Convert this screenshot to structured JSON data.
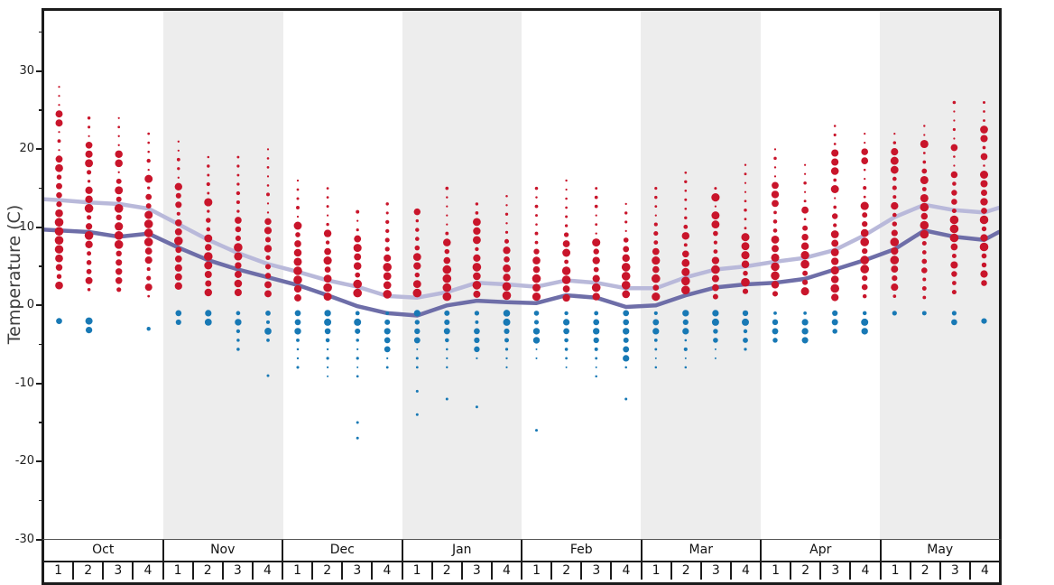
{
  "chart_data": {
    "type": "scatter",
    "ylabel": "Temperature (C)",
    "ylim": [
      -30,
      38
    ],
    "grid": false,
    "legend": null,
    "yticks_major": [
      30,
      20,
      10,
      0,
      -10,
      -20,
      -30
    ],
    "yticks_minor": [
      35,
      25,
      15,
      5,
      -5,
      -15,
      -25
    ],
    "months": [
      "Oct",
      "Nov",
      "Dec",
      "Jan",
      "Feb",
      "Mar",
      "Apr",
      "May"
    ],
    "week_labels": [
      "1",
      "2",
      "3",
      "4"
    ],
    "shaded_months": [
      "Nov",
      "Jan",
      "Mar",
      "May"
    ],
    "colors": {
      "above_freezing_dots": "#c9152b",
      "below_freezing_dots": "#1879b5",
      "average_high_line": "#b9b9da",
      "average_low_line": "#6e6ea8",
      "month_shade": "#ededed",
      "frame": "#1b1b1b"
    },
    "series": [
      {
        "name": "average-high",
        "edge_start": 13.6,
        "edge_end": 12.5,
        "values": [
          13.5,
          13.2,
          13.0,
          12.4,
          10.4,
          8.4,
          6.7,
          5.3,
          4.3,
          3.2,
          2.4,
          1.2,
          1.0,
          1.7,
          2.9,
          2.7,
          2.4,
          3.2,
          2.9,
          2.2,
          2.2,
          3.6,
          4.6,
          5.0,
          5.6,
          6.1,
          7.1,
          9.0,
          11.3,
          12.9,
          12.2,
          11.9
        ]
      },
      {
        "name": "average-low",
        "edge_start": 9.7,
        "edge_end": 9.4,
        "values": [
          9.6,
          9.4,
          8.8,
          9.2,
          7.4,
          5.8,
          4.6,
          3.6,
          2.6,
          1.3,
          -0.1,
          -1.0,
          -1.3,
          0.0,
          0.6,
          0.4,
          0.3,
          1.3,
          1.0,
          -0.2,
          0.0,
          1.3,
          2.3,
          2.7,
          2.9,
          3.4,
          4.6,
          5.8,
          7.2,
          9.6,
          8.8,
          8.4
        ]
      }
    ],
    "weeks": [
      {
        "m": "Oct",
        "w": 1,
        "red": [
          2,
          28
        ],
        "blue": [
          -2,
          -2
        ],
        "big": [
          24,
          18,
          12,
          5,
          2
        ],
        "bigBlue": [],
        "out": []
      },
      {
        "m": "Oct",
        "w": 2,
        "red": [
          1,
          24
        ],
        "blue": [
          -2,
          -4
        ],
        "big": [
          20,
          19,
          14,
          3
        ],
        "bigBlue": [],
        "out": []
      },
      {
        "m": "Oct",
        "w": 3,
        "red": [
          1,
          24
        ],
        "blue": null,
        "big": [
          19,
          15,
          9,
          3
        ],
        "bigBlue": [],
        "out": []
      },
      {
        "m": "Oct",
        "w": 4,
        "red": [
          1,
          22
        ],
        "blue": [
          -3,
          -4
        ],
        "big": [
          16,
          11,
          8,
          2
        ],
        "bigBlue": [],
        "out": []
      },
      {
        "m": "Nov",
        "w": 1,
        "red": [
          2,
          21
        ],
        "blue": [
          -1,
          -3
        ],
        "big": [
          15,
          10,
          8,
          3
        ],
        "bigBlue": [],
        "out": []
      },
      {
        "m": "Nov",
        "w": 2,
        "red": [
          1,
          19
        ],
        "blue": [
          -1,
          -3
        ],
        "big": [
          13,
          8,
          5,
          2
        ],
        "bigBlue": [
          -2
        ],
        "out": []
      },
      {
        "m": "Nov",
        "w": 3,
        "red": [
          1,
          19
        ],
        "blue": [
          -1,
          -6
        ],
        "big": [
          11,
          7,
          4,
          2
        ],
        "bigBlue": [],
        "out": []
      },
      {
        "m": "Nov",
        "w": 4,
        "red": [
          1,
          20
        ],
        "blue": [
          -1,
          -5
        ],
        "big": [
          10,
          7,
          3
        ],
        "bigBlue": [],
        "out": [
          -9
        ]
      },
      {
        "m": "Dec",
        "w": 1,
        "red": [
          0.5,
          16
        ],
        "blue": [
          -1,
          -8
        ],
        "big": [
          10,
          7,
          5,
          2
        ],
        "bigBlue": [
          -1,
          -2,
          -3
        ],
        "out": []
      },
      {
        "m": "Dec",
        "w": 2,
        "red": [
          0.5,
          15
        ],
        "blue": [
          -1,
          -10
        ],
        "big": [
          9,
          6,
          3,
          1
        ],
        "bigBlue": [
          -1,
          -2
        ],
        "out": []
      },
      {
        "m": "Dec",
        "w": 3,
        "red": [
          0.5,
          12
        ],
        "blue": [
          -1,
          -10
        ],
        "big": [
          8,
          5,
          3,
          1
        ],
        "bigBlue": [
          -2
        ],
        "out": [
          -15,
          -17
        ]
      },
      {
        "m": "Dec",
        "w": 4,
        "red": [
          0.5,
          13
        ],
        "blue": [
          -1,
          -8
        ],
        "big": [
          6,
          4,
          2
        ],
        "bigBlue": [
          -4,
          -5
        ],
        "out": []
      },
      {
        "m": "Jan",
        "w": 1,
        "red": [
          0.5,
          12
        ],
        "blue": [
          -1,
          -8
        ],
        "big": [
          12,
          6,
          3,
          1
        ],
        "bigBlue": [
          -1,
          -4
        ],
        "out": [
          -11,
          -14
        ]
      },
      {
        "m": "Jan",
        "w": 2,
        "red": [
          0.5,
          15
        ],
        "blue": [
          -1,
          -9
        ],
        "big": [
          8,
          5,
          2
        ],
        "bigBlue": [
          -3
        ],
        "out": [
          -12
        ]
      },
      {
        "m": "Jan",
        "w": 3,
        "red": [
          0.5,
          13
        ],
        "blue": [
          -1,
          -7
        ],
        "big": [
          10,
          9,
          6,
          4,
          1
        ],
        "bigBlue": [
          -3,
          -5
        ],
        "out": [
          -13
        ]
      },
      {
        "m": "Jan",
        "w": 4,
        "red": [
          0.5,
          14
        ],
        "blue": [
          -1,
          -9
        ],
        "big": [
          7,
          5,
          3,
          1
        ],
        "bigBlue": [
          -2,
          -9
        ],
        "out": []
      },
      {
        "m": "Feb",
        "w": 1,
        "red": [
          0.5,
          15
        ],
        "blue": [
          -1,
          -7
        ],
        "big": [
          6,
          4,
          1
        ],
        "bigBlue": [
          -3,
          -4
        ],
        "out": [
          -16
        ]
      },
      {
        "m": "Feb",
        "w": 2,
        "red": [
          0.5,
          16
        ],
        "blue": [
          -1,
          -8
        ],
        "big": [
          8,
          7,
          4,
          2
        ],
        "bigBlue": [
          -2,
          -3
        ],
        "out": []
      },
      {
        "m": "Feb",
        "w": 3,
        "red": [
          0.5,
          15
        ],
        "blue": [
          -1,
          -10
        ],
        "big": [
          8,
          6,
          3,
          1
        ],
        "bigBlue": [
          -3,
          -4
        ],
        "out": []
      },
      {
        "m": "Feb",
        "w": 4,
        "red": [
          0.5,
          13
        ],
        "blue": [
          -1,
          -8
        ],
        "big": [
          6,
          4,
          2
        ],
        "bigBlue": [
          -1,
          -6
        ],
        "out": [
          -12
        ]
      },
      {
        "m": "Mar",
        "w": 1,
        "red": [
          0.5,
          15
        ],
        "blue": [
          -1,
          -9
        ],
        "big": [
          7,
          4,
          1
        ],
        "bigBlue": [
          -2,
          -3
        ],
        "out": []
      },
      {
        "m": "Mar",
        "w": 2,
        "red": [
          1,
          17
        ],
        "blue": [
          -1,
          -8
        ],
        "big": [
          9,
          6,
          3,
          1
        ],
        "bigBlue": [
          -1,
          -2
        ],
        "out": []
      },
      {
        "m": "Mar",
        "w": 3,
        "red": [
          1,
          15
        ],
        "blue": [
          -1,
          -7
        ],
        "big": [
          14,
          11,
          6,
          3
        ],
        "bigBlue": [
          -2
        ],
        "out": []
      },
      {
        "m": "Mar",
        "w": 4,
        "red": [
          1,
          18
        ],
        "blue": [
          -1,
          -6
        ],
        "big": [
          8,
          6,
          3
        ],
        "bigBlue": [
          -1
        ],
        "out": []
      },
      {
        "m": "Apr",
        "w": 1,
        "red": [
          1,
          20
        ],
        "blue": [
          -1,
          -5
        ],
        "big": [
          15,
          14,
          13,
          8,
          3
        ],
        "bigBlue": [
          -2
        ],
        "out": []
      },
      {
        "m": "Apr",
        "w": 2,
        "red": [
          1,
          18
        ],
        "blue": [
          -1,
          -5
        ],
        "big": [
          12,
          7,
          5,
          2
        ],
        "bigBlue": [
          -4
        ],
        "out": []
      },
      {
        "m": "Apr",
        "w": 3,
        "red": [
          1,
          23
        ],
        "blue": [
          -1,
          -4
        ],
        "big": [
          19,
          17,
          15,
          8,
          4
        ],
        "bigBlue": [
          -2
        ],
        "out": []
      },
      {
        "m": "Apr",
        "w": 4,
        "red": [
          1,
          22
        ],
        "blue": [
          -1,
          -4
        ],
        "big": [
          19,
          13,
          9,
          5
        ],
        "bigBlue": [
          -3
        ],
        "out": []
      },
      {
        "m": "May",
        "w": 1,
        "red": [
          1,
          22
        ],
        "blue": [
          -1,
          -2
        ],
        "big": [
          20,
          18,
          13,
          8,
          2
        ],
        "bigBlue": [],
        "out": []
      },
      {
        "m": "May",
        "w": 2,
        "red": [
          1,
          23
        ],
        "blue": [
          -1,
          -2
        ],
        "big": [
          21,
          16,
          12,
          9
        ],
        "bigBlue": [],
        "out": []
      },
      {
        "m": "May",
        "w": 3,
        "red": [
          1,
          26
        ],
        "blue": [
          -1,
          -3
        ],
        "big": [
          20,
          17,
          10,
          5
        ],
        "bigBlue": [],
        "out": []
      },
      {
        "m": "May",
        "w": 4,
        "red": [
          2,
          26
        ],
        "blue": [
          -2,
          -2
        ],
        "big": [
          22,
          19,
          16,
          13,
          9
        ],
        "bigBlue": [],
        "out": []
      }
    ]
  }
}
